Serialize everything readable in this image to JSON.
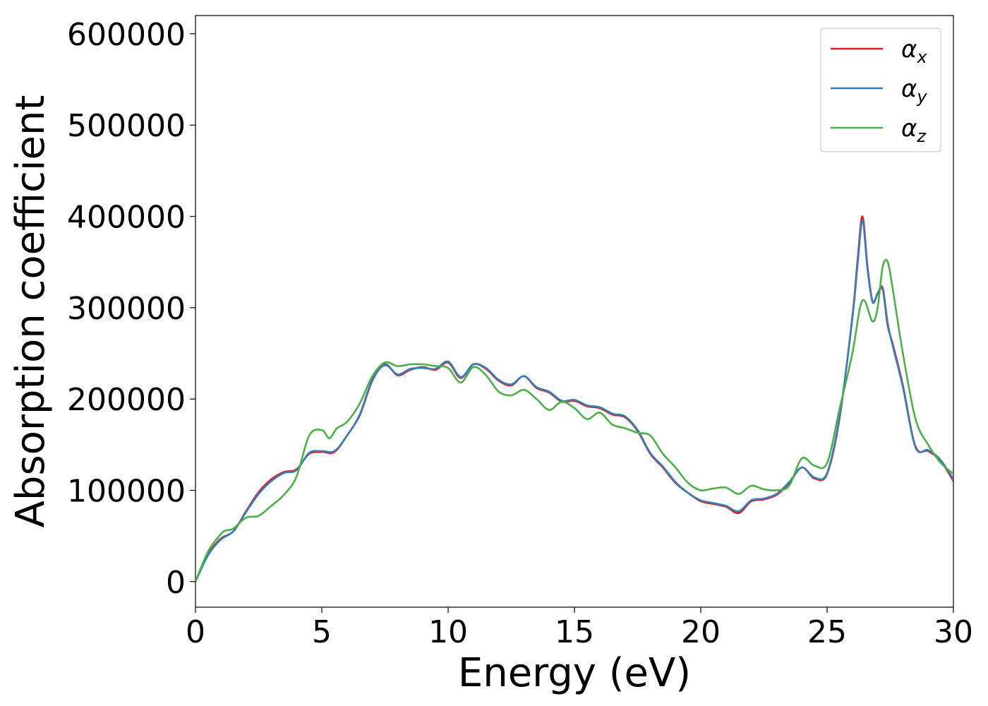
{
  "chart_data": {
    "type": "line",
    "xlabel": "Energy (eV)",
    "ylabel": "Absorption coefficient",
    "xlim": [
      0,
      30
    ],
    "ylim": [
      -28000,
      620000
    ],
    "xticks": [
      0,
      5,
      10,
      15,
      20,
      25,
      30
    ],
    "xtick_labels": [
      "0",
      "5",
      "10",
      "15",
      "20",
      "25",
      "30"
    ],
    "yticks": [
      0,
      100000,
      200000,
      300000,
      400000,
      500000,
      600000
    ],
    "ytick_labels": [
      "0",
      "100000",
      "200000",
      "300000",
      "400000",
      "500000",
      "600000"
    ],
    "grid": false,
    "legend_position": "top-right",
    "series": [
      {
        "name": "α_x",
        "legend_base": "α",
        "legend_sub": "x",
        "color": "#e41a1c",
        "x": [
          0,
          0.5,
          1,
          1.5,
          2,
          2.5,
          3,
          3.5,
          4,
          4.5,
          5,
          5.5,
          6,
          6.5,
          7,
          7.5,
          8,
          8.5,
          9,
          9.5,
          10,
          10.5,
          11,
          11.5,
          12,
          12.5,
          13,
          13.5,
          14,
          14.5,
          15,
          15.5,
          16,
          16.5,
          17,
          17.5,
          18,
          18.5,
          19,
          19.5,
          20,
          20.5,
          21,
          21.5,
          22,
          22.5,
          23,
          23.5,
          24,
          24.5,
          25,
          25.5,
          26,
          26.2,
          26.4,
          26.6,
          26.8,
          27,
          27.2,
          27.4,
          27.6,
          28,
          28.5,
          29,
          29.5,
          30
        ],
        "y": [
          0,
          30000,
          47000,
          55000,
          77000,
          98000,
          112000,
          120000,
          123000,
          140000,
          142000,
          142000,
          160000,
          182000,
          220000,
          238000,
          226000,
          232000,
          235000,
          232000,
          240000,
          223000,
          238000,
          233000,
          220000,
          215000,
          225000,
          212000,
          207000,
          197000,
          198000,
          192000,
          190000,
          183000,
          180000,
          165000,
          140000,
          125000,
          108000,
          97000,
          88000,
          85000,
          82000,
          75000,
          88000,
          90000,
          95000,
          108000,
          125000,
          113000,
          118000,
          180000,
          290000,
          350000,
          400000,
          345000,
          307000,
          315000,
          320000,
          280000,
          260000,
          215000,
          148000,
          143000,
          132000,
          110000
        ]
      },
      {
        "name": "α_y",
        "legend_base": "α",
        "legend_sub": "y",
        "color": "#377eb8",
        "x": [
          0,
          0.5,
          1,
          1.5,
          2,
          2.5,
          3,
          3.5,
          4,
          4.5,
          5,
          5.5,
          6,
          6.5,
          7,
          7.5,
          8,
          8.5,
          9,
          9.5,
          10,
          10.5,
          11,
          11.5,
          12,
          12.5,
          13,
          13.5,
          14,
          14.5,
          15,
          15.5,
          16,
          16.5,
          17,
          17.5,
          18,
          18.5,
          19,
          19.5,
          20,
          20.5,
          21,
          21.5,
          22,
          22.5,
          23,
          23.5,
          24,
          24.5,
          25,
          25.5,
          26,
          26.2,
          26.4,
          26.6,
          26.8,
          27,
          27.2,
          27.4,
          27.6,
          28,
          28.5,
          29,
          29.5,
          30
        ],
        "y": [
          0,
          29000,
          46000,
          55000,
          76000,
          96000,
          110000,
          119000,
          122000,
          141000,
          143000,
          143000,
          160000,
          183000,
          221000,
          237000,
          227000,
          233000,
          234000,
          233000,
          241000,
          224000,
          238000,
          234000,
          221000,
          216000,
          225000,
          213000,
          208000,
          198000,
          199000,
          193000,
          191000,
          184000,
          181000,
          166000,
          141000,
          126000,
          109000,
          97000,
          89000,
          86000,
          83000,
          77000,
          89000,
          91000,
          96000,
          109000,
          125000,
          114000,
          119000,
          182000,
          288000,
          345000,
          395000,
          342000,
          306000,
          316000,
          322000,
          283000,
          258000,
          213000,
          147000,
          144000,
          133000,
          112000
        ]
      },
      {
        "name": "α_z",
        "legend_base": "α",
        "legend_sub": "z",
        "color": "#4daf4a",
        "x": [
          0,
          0.5,
          1,
          1.2,
          1.5,
          2,
          2.5,
          3,
          3.5,
          4,
          4.5,
          5,
          5.3,
          5.6,
          6,
          6.5,
          7,
          7.5,
          8,
          8.5,
          9,
          9.5,
          10,
          10.5,
          11,
          11.5,
          12,
          12.5,
          13,
          13.5,
          14,
          14.5,
          15,
          15.5,
          16,
          16.5,
          17,
          17.5,
          18,
          18.5,
          19,
          19.5,
          20,
          20.5,
          21,
          21.5,
          22,
          22.5,
          23,
          23.5,
          24,
          24.5,
          25,
          25.5,
          26,
          26.3,
          26.5,
          26.8,
          27,
          27.2,
          27.4,
          27.6,
          28,
          28.5,
          29,
          29.5,
          30
        ],
        "y": [
          0,
          33000,
          52000,
          56000,
          58000,
          70000,
          72000,
          83000,
          95000,
          115000,
          160000,
          166000,
          157000,
          168000,
          175000,
          195000,
          225000,
          240000,
          236000,
          238000,
          238000,
          236000,
          234000,
          218000,
          235000,
          226000,
          208000,
          204000,
          210000,
          200000,
          188000,
          197000,
          190000,
          178000,
          185000,
          172000,
          168000,
          163000,
          160000,
          140000,
          125000,
          108000,
          100000,
          102000,
          103000,
          96000,
          105000,
          101000,
          100000,
          105000,
          135000,
          127000,
          130000,
          190000,
          250000,
          300000,
          307000,
          285000,
          300000,
          345000,
          350000,
          320000,
          250000,
          178000,
          150000,
          130000,
          118000
        ]
      }
    ]
  }
}
